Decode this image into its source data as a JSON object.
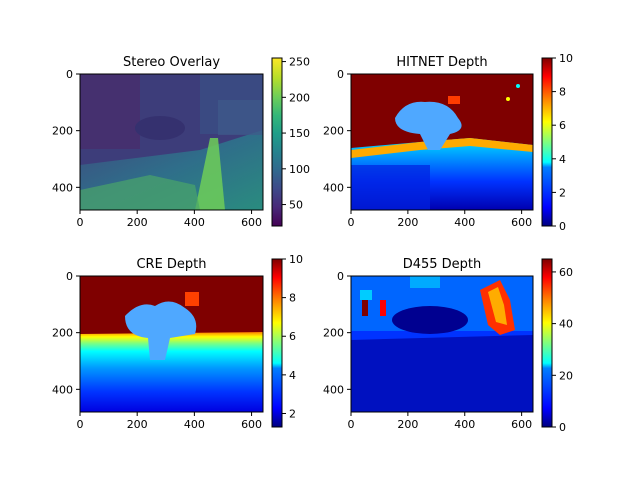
{
  "chart_data": [
    {
      "type": "heatmap",
      "title": "Stereo Overlay",
      "xlim": [
        0,
        640
      ],
      "ylim": [
        480,
        0
      ],
      "xticks": [
        "0",
        "200",
        "400",
        "600"
      ],
      "yticks": [
        "0",
        "200",
        "400"
      ],
      "colormap": "viridis",
      "colorbar_range": [
        20,
        255
      ],
      "colorbar_ticks": [
        "250",
        "200",
        "150",
        "100",
        "50"
      ],
      "colorbar_tick_values": [
        250,
        200,
        150,
        100,
        50
      ]
    },
    {
      "type": "heatmap",
      "title": "HITNET Depth",
      "xlim": [
        0,
        640
      ],
      "ylim": [
        480,
        0
      ],
      "xticks": [
        "0",
        "200",
        "400",
        "600"
      ],
      "yticks": [
        "0",
        "200",
        "400"
      ],
      "colormap": "jet",
      "colorbar_range": [
        0,
        10
      ],
      "colorbar_ticks": [
        "10",
        "8",
        "6",
        "4",
        "2",
        "0"
      ],
      "colorbar_tick_values": [
        10,
        8,
        6,
        4,
        2,
        0
      ]
    },
    {
      "type": "heatmap",
      "title": "CRE Depth",
      "xlim": [
        0,
        640
      ],
      "ylim": [
        480,
        0
      ],
      "xticks": [
        "0",
        "200",
        "400",
        "600"
      ],
      "yticks": [
        "0",
        "200",
        "400"
      ],
      "colormap": "jet",
      "colorbar_range": [
        1.3,
        10
      ],
      "colorbar_ticks": [
        "10",
        "8",
        "6",
        "4",
        "2"
      ],
      "colorbar_tick_values": [
        10,
        8,
        6,
        4,
        2
      ]
    },
    {
      "type": "heatmap",
      "title": "D455 Depth",
      "xlim": [
        0,
        640
      ],
      "ylim": [
        480,
        0
      ],
      "xticks": [
        "0",
        "200",
        "400",
        "600"
      ],
      "yticks": [
        "0",
        "200",
        "400"
      ],
      "colormap": "jet",
      "colorbar_range": [
        0,
        65
      ],
      "colorbar_ticks": [
        "60",
        "40",
        "20",
        "0"
      ],
      "colorbar_tick_values": [
        60,
        40,
        20,
        0
      ]
    }
  ],
  "colors": {
    "viridis": [
      "#440154",
      "#482878",
      "#3e4989",
      "#31688e",
      "#26828e",
      "#1f9e89",
      "#35b779",
      "#6ece58",
      "#b5de2b",
      "#fde725"
    ],
    "jet": [
      "#00007f",
      "#0000ff",
      "#007fff",
      "#00ffff",
      "#7fff7f",
      "#ffff00",
      "#ff7f00",
      "#ff0000",
      "#7f0000"
    ]
  }
}
